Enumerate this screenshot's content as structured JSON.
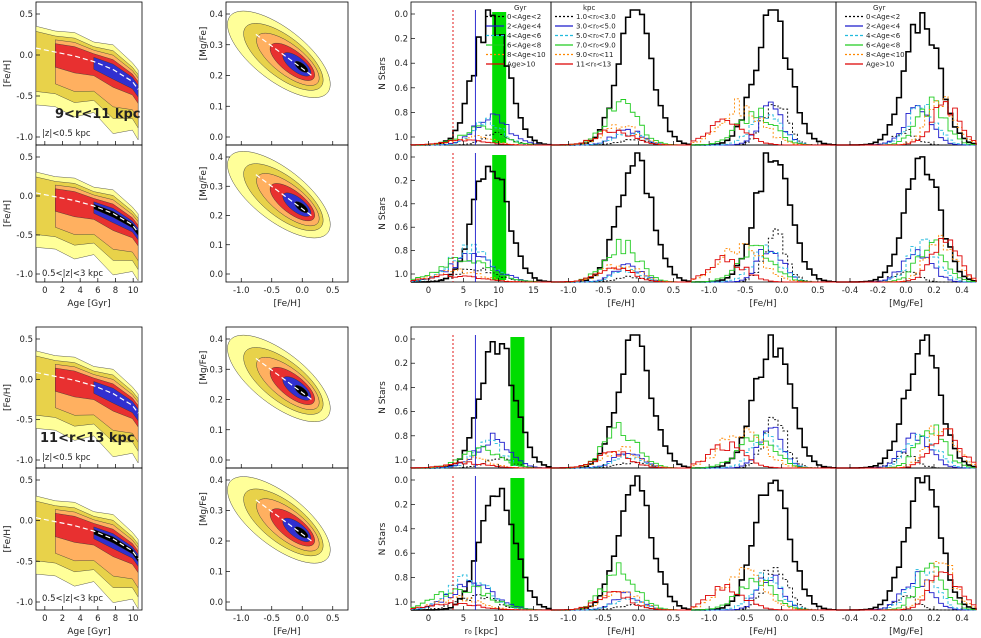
{
  "figure": {
    "row_labels": {
      "r1": "9<r<11 kpc",
      "r2": "11<r<13 kpc",
      "z_low": "|z|<0.5 kpc",
      "z_high": "0.5<|z|<3 kpc"
    },
    "age_feh_xlabel": "Age [Gyr]",
    "age_feh_ylabel": "[Fe/H]",
    "mgfe_feh_xlabel": "[Fe/H]",
    "mgfe_feh_ylabel": "[Mg/Fe]",
    "hist_ylabel": "N Stars",
    "r0_xlabel": "r₀ [kpc]",
    "feh_xlabel": "[Fe/H]",
    "mgfe_xlabel": "[Mg/Fe]"
  },
  "chart_data": [
    {
      "type": "contour",
      "panel": "age-feh",
      "x_ticks": [
        "0",
        "2",
        "4",
        "6",
        "8",
        "10"
      ],
      "y_ticks": [
        "0.5",
        "0.0",
        "-0.5",
        "-1.0"
      ],
      "xlim": [
        0,
        11
      ],
      "ylim": [
        -1.2,
        0.6
      ],
      "levels_colors": [
        "#ffff99",
        "#e8d24a",
        "#ffb060",
        "#e83030",
        "#3030d0",
        "#000000"
      ],
      "ridge": [
        [
          0,
          0.02
        ],
        [
          2,
          -0.03
        ],
        [
          4,
          -0.08
        ],
        [
          6,
          -0.15
        ],
        [
          8,
          -0.25
        ],
        [
          10,
          -0.4
        ],
        [
          10.6,
          -0.5
        ]
      ]
    },
    {
      "type": "contour",
      "panel": "mgfe-feh",
      "x_ticks": [
        "-1.0",
        "-0.5",
        "0.0",
        "0.5"
      ],
      "y_ticks": [
        "0.4",
        "0.3",
        "0.2",
        "0.1",
        "0.0"
      ],
      "xlim": [
        -1.4,
        0.8
      ],
      "ylim": [
        -0.08,
        0.45
      ]
    },
    {
      "type": "line",
      "panel": "r0-histogram",
      "x_ticks": [
        "0",
        "5",
        "10",
        "15"
      ],
      "y_ticks": [
        "0.0",
        "0.2",
        "0.4",
        "0.6",
        "0.8",
        "1.0"
      ],
      "xlim": [
        0,
        16
      ],
      "ylim": [
        0,
        1.05
      ],
      "legend_title": "Gyr",
      "legend": [
        "0<Age<2",
        "2<Age<4",
        "4<Age<6",
        "6<Age<8",
        "8<Age<10",
        "Age>10"
      ]
    },
    {
      "type": "line",
      "panel": "feh-histogram",
      "x_ticks": [
        "-1.0",
        "-0.5",
        "0.0",
        "0.5"
      ],
      "xlim": [
        -1.4,
        0.8
      ],
      "legend_title": "kpc",
      "legend": [
        "1.0<r₀<3.0",
        "3.0<r₀<5.0",
        "5.0<r₀<7.0",
        "7.0<r₀<9.0",
        "9.0<r₀<11",
        "11<r₀<13"
      ]
    },
    {
      "type": "line",
      "panel": "mgfe-histogram",
      "x_ticks": [
        "-0.4",
        "-0.2",
        "0.0",
        "0.2",
        "0.4"
      ],
      "xlim": [
        -0.45,
        0.48
      ],
      "legend_title": "Gyr",
      "legend": [
        "0<Age<2",
        "2<Age<4",
        "4<Age<6",
        "6<Age<8",
        "8<Age<10",
        "Age>10"
      ]
    }
  ],
  "colors": {
    "black": "#000000",
    "blue": "#1a1acc",
    "cyan": "#22bbdd",
    "green": "#22cc22",
    "orange": "#ff8800",
    "red": "#dd0000",
    "band": "#00dd00"
  }
}
